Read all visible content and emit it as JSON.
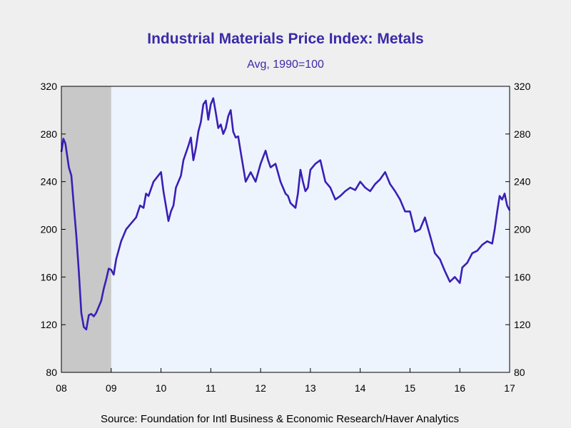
{
  "colors": {
    "background": "#efefef",
    "plot_background": "#eef4fe",
    "recession_shading": "#c8c8c8",
    "line": "#3a1fb5",
    "title": "#3a2aa8"
  },
  "chart_data": {
    "type": "line",
    "title": "Industrial Materials Price Index: Metals",
    "subtitle": "Avg, 1990=100",
    "source": "Source:  Foundation for Intl Business & Economic Research/Haver Analytics",
    "xlim": [
      2008.0,
      2017.0
    ],
    "ylim": [
      80,
      320
    ],
    "x_ticks": [
      2008,
      2009,
      2010,
      2011,
      2012,
      2013,
      2014,
      2015,
      2016,
      2017
    ],
    "x_tick_labels": [
      "08",
      "09",
      "10",
      "11",
      "12",
      "13",
      "14",
      "15",
      "16",
      "17"
    ],
    "y_ticks": [
      80,
      120,
      160,
      200,
      240,
      280,
      320
    ],
    "y_tick_labels": [
      "80",
      "120",
      "160",
      "200",
      "240",
      "280",
      "320"
    ],
    "right_axis": true,
    "grid": false,
    "recession": [
      2008.0,
      2009.0
    ],
    "series": [
      {
        "x": [
          2008.0,
          2008.04,
          2008.08,
          2008.15,
          2008.2,
          2008.25,
          2008.3,
          2008.35,
          2008.4,
          2008.45,
          2008.5,
          2008.55,
          2008.6,
          2008.65,
          2008.7,
          2008.75,
          2008.8,
          2008.85,
          2008.9,
          2008.95,
          2009.0,
          2009.05,
          2009.1,
          2009.2,
          2009.3,
          2009.4,
          2009.5,
          2009.58,
          2009.65,
          2009.7,
          2009.75,
          2009.85,
          2010.0,
          2010.05,
          2010.15,
          2010.2,
          2010.25,
          2010.3,
          2010.4,
          2010.45,
          2010.55,
          2010.6,
          2010.65,
          2010.7,
          2010.75,
          2010.8,
          2010.85,
          2010.9,
          2010.95,
          2011.0,
          2011.05,
          2011.1,
          2011.15,
          2011.2,
          2011.25,
          2011.3,
          2011.35,
          2011.4,
          2011.45,
          2011.5,
          2011.55,
          2011.6,
          2011.7,
          2011.8,
          2011.9,
          2012.0,
          2012.1,
          2012.15,
          2012.2,
          2012.3,
          2012.4,
          2012.5,
          2012.55,
          2012.6,
          2012.65,
          2012.7,
          2012.75,
          2012.8,
          2012.85,
          2012.9,
          2012.95,
          2013.0,
          2013.1,
          2013.2,
          2013.3,
          2013.4,
          2013.5,
          2013.6,
          2013.7,
          2013.8,
          2013.9,
          2014.0,
          2014.1,
          2014.2,
          2014.3,
          2014.4,
          2014.5,
          2014.6,
          2014.7,
          2014.8,
          2014.9,
          2015.0,
          2015.1,
          2015.2,
          2015.3,
          2015.4,
          2015.5,
          2015.6,
          2015.7,
          2015.8,
          2015.9,
          2016.0,
          2016.05,
          2016.15,
          2016.25,
          2016.35,
          2016.45,
          2016.55,
          2016.65,
          2016.7,
          2016.75,
          2016.8,
          2016.85,
          2016.9,
          2016.95,
          2017.0
        ],
        "y": [
          265,
          276,
          272,
          252,
          245,
          220,
          195,
          165,
          130,
          118,
          116,
          128,
          129,
          127,
          130,
          135,
          140,
          150,
          158,
          167,
          166,
          162,
          175,
          190,
          200,
          205,
          210,
          220,
          218,
          230,
          228,
          240,
          248,
          232,
          207,
          215,
          220,
          235,
          245,
          258,
          270,
          277,
          258,
          268,
          282,
          290,
          305,
          308,
          292,
          305,
          310,
          298,
          285,
          288,
          280,
          285,
          295,
          300,
          282,
          277,
          278,
          265,
          240,
          248,
          240,
          255,
          266,
          258,
          252,
          255,
          240,
          230,
          228,
          222,
          220,
          218,
          230,
          250,
          240,
          232,
          235,
          250,
          255,
          258,
          240,
          235,
          225,
          228,
          232,
          235,
          233,
          240,
          235,
          232,
          238,
          242,
          248,
          238,
          232,
          225,
          215,
          215,
          198,
          200,
          210,
          195,
          180,
          175,
          165,
          156,
          160,
          155,
          168,
          172,
          180,
          182,
          187,
          190,
          188,
          200,
          215,
          228,
          225,
          230,
          220,
          216
        ]
      }
    ]
  }
}
